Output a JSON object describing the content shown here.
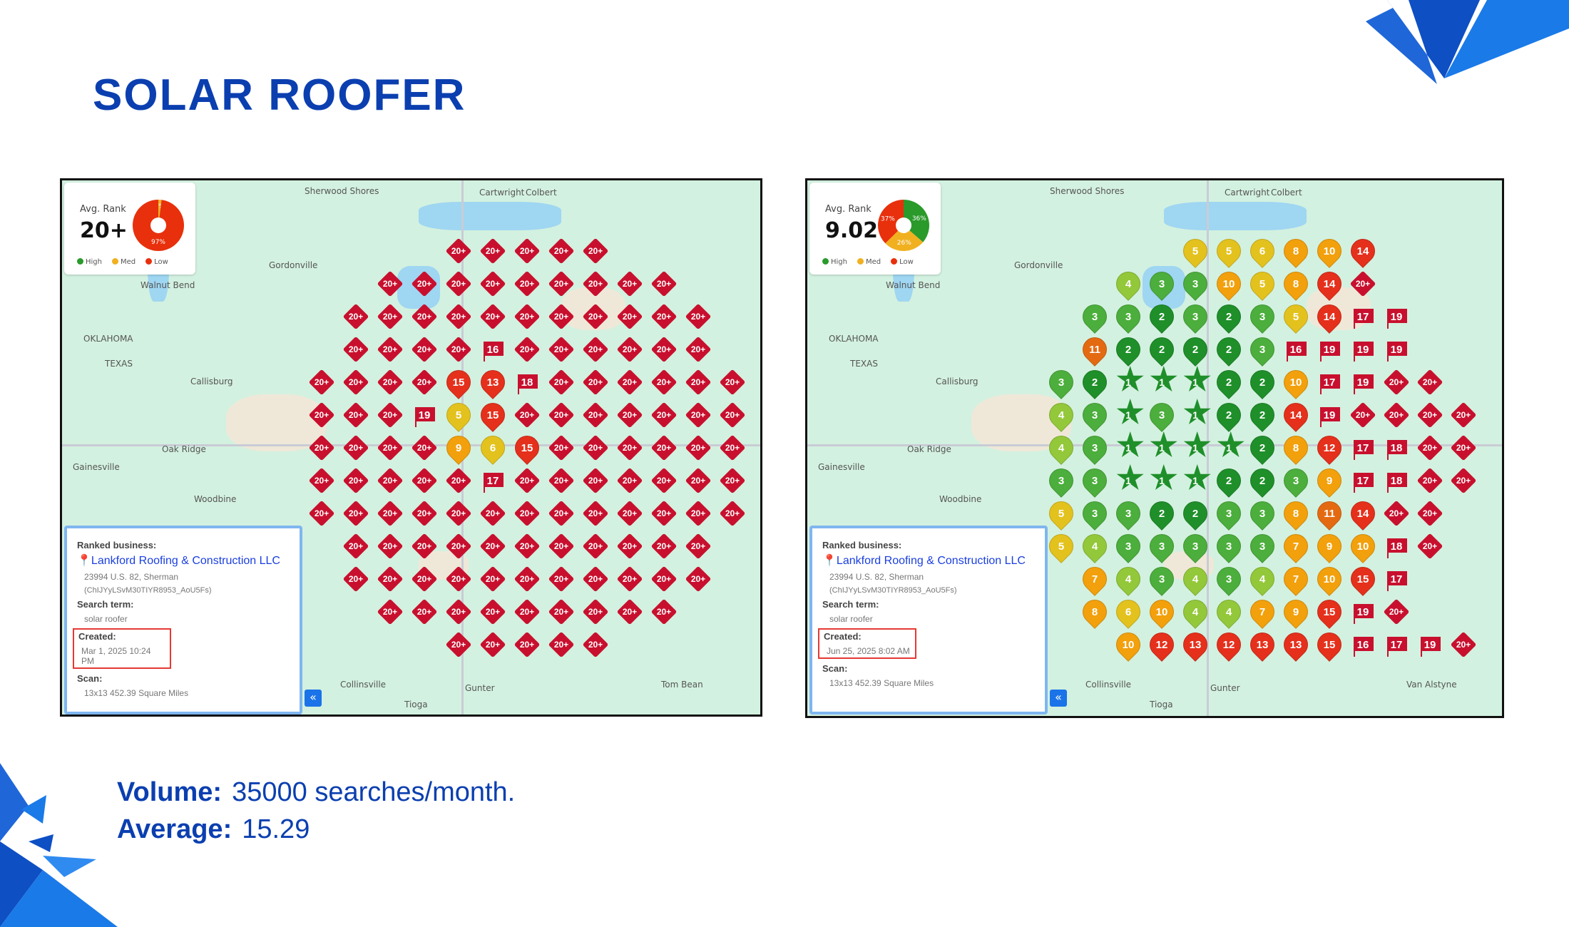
{
  "title": "SOLAR ROOFER",
  "colors": {
    "brand": "#0b3fb0",
    "high": "#2a9a2a",
    "med": "#f0b020",
    "low": "#e8300c"
  },
  "maps": [
    {
      "avg_rank_label": "Avg. Rank",
      "avg_rank": "20+",
      "pie": [
        {
          "label": "High",
          "pct": 0
        },
        {
          "label": "Med",
          "pct": 2,
          "text": "2%"
        },
        {
          "label": "Low",
          "pct": 97,
          "text": "97%"
        }
      ],
      "legend": [
        "High",
        "Med",
        "Low"
      ],
      "info": {
        "ranked_label": "Ranked business:",
        "business": "Lankford Roofing & Construction LLC",
        "address": "23994 U.S. 82, Sherman",
        "place_id": "(ChIJYyLSvM30TIYR8953_AoU5Fs)",
        "search_label": "Search term:",
        "search_term": "solar roofer",
        "created_label": "Created:",
        "created": "Mar 1, 2025 10:24 PM",
        "scan_label": "Scan:",
        "scan": "13x13 452.39 Square Miles"
      },
      "places": [
        "Sherwood Shores",
        "Cartwright",
        "Colbert",
        "Gordonville",
        "Walnut Bend",
        "OKLAHOMA",
        "TEXAS",
        "Callisburg",
        "Oak Ridge",
        "Gainesville",
        "Woodbine",
        "Collinsville",
        "Tioga",
        "Gunter",
        "Tom Bean"
      ],
      "grid": [
        [
          "",
          "",
          "",
          "",
          "20+",
          "20+",
          "20+",
          "20+",
          "20+",
          "",
          "",
          "",
          ""
        ],
        [
          "",
          "",
          "20+",
          "20+",
          "20+",
          "20+",
          "20+",
          "20+",
          "20+",
          "20+",
          "20+",
          "",
          ""
        ],
        [
          "",
          "20+",
          "20+",
          "20+",
          "20+",
          "20+",
          "20+",
          "20+",
          "20+",
          "20+",
          "20+",
          "20+",
          ""
        ],
        [
          "",
          "20+",
          "20+",
          "20+",
          "20+",
          "16",
          "20+",
          "20+",
          "20+",
          "20+",
          "20+",
          "20+",
          ""
        ],
        [
          "20+",
          "20+",
          "20+",
          "20+",
          "15",
          "13",
          "18",
          "20+",
          "20+",
          "20+",
          "20+",
          "20+",
          "20+"
        ],
        [
          "20+",
          "20+",
          "20+",
          "19",
          "5",
          "15",
          "20+",
          "20+",
          "20+",
          "20+",
          "20+",
          "20+",
          "20+"
        ],
        [
          "20+",
          "20+",
          "20+",
          "20+",
          "9",
          "6",
          "15",
          "20+",
          "20+",
          "20+",
          "20+",
          "20+",
          "20+"
        ],
        [
          "20+",
          "20+",
          "20+",
          "20+",
          "20+",
          "17",
          "20+",
          "20+",
          "20+",
          "20+",
          "20+",
          "20+",
          "20+"
        ],
        [
          "20+",
          "20+",
          "20+",
          "20+",
          "20+",
          "20+",
          "20+",
          "20+",
          "20+",
          "20+",
          "20+",
          "20+",
          "20+"
        ],
        [
          "",
          "20+",
          "20+",
          "20+",
          "20+",
          "20+",
          "20+",
          "20+",
          "20+",
          "20+",
          "20+",
          "20+",
          ""
        ],
        [
          "",
          "20+",
          "20+",
          "20+",
          "20+",
          "20+",
          "20+",
          "20+",
          "20+",
          "20+",
          "20+",
          "20+",
          ""
        ],
        [
          "",
          "",
          "20+",
          "20+",
          "20+",
          "20+",
          "20+",
          "20+",
          "20+",
          "20+",
          "20+",
          "",
          ""
        ],
        [
          "",
          "",
          "",
          "",
          "20+",
          "20+",
          "20+",
          "20+",
          "20+",
          "",
          "",
          "",
          ""
        ]
      ]
    },
    {
      "avg_rank_label": "Avg. Rank",
      "avg_rank": "9.02",
      "pie": [
        {
          "label": "High",
          "pct": 36,
          "text": "36%"
        },
        {
          "label": "Med",
          "pct": 26,
          "text": "26%"
        },
        {
          "label": "Low",
          "pct": 37,
          "text": "37%"
        }
      ],
      "legend": [
        "High",
        "Med",
        "Low"
      ],
      "info": {
        "ranked_label": "Ranked business:",
        "business": "Lankford Roofing & Construction LLC",
        "address": "23994 U.S. 82, Sherman",
        "place_id": "(ChIJYyLSvM30TIYR8953_AoU5Fs)",
        "search_label": "Search term:",
        "search_term": "solar roofer",
        "created_label": "Created:",
        "created": "Jun 25, 2025 8:02 AM",
        "scan_label": "Scan:",
        "scan": "13x13 452.39 Square Miles"
      },
      "places": [
        "Sherwood Shores",
        "Cartwright",
        "Colbert",
        "Gordonville",
        "Walnut Bend",
        "OKLAHOMA",
        "TEXAS",
        "Callisburg",
        "Oak Ridge",
        "Gainesville",
        "Woodbine",
        "Collinsville",
        "Tioga",
        "Gunter",
        "Van Alstyne"
      ],
      "grid": [
        [
          "",
          "",
          "",
          "",
          "5",
          "5",
          "6",
          "8",
          "10",
          "14",
          "",
          "",
          ""
        ],
        [
          "",
          "",
          "4",
          "3",
          "3",
          "10",
          "5",
          "8",
          "14",
          "20+",
          "",
          "",
          ""
        ],
        [
          "",
          "3",
          "3",
          "2",
          "3",
          "2",
          "3",
          "5",
          "14",
          "17",
          "19",
          "",
          ""
        ],
        [
          "",
          "11",
          "2",
          "2",
          "2",
          "2",
          "3",
          "16",
          "19",
          "19",
          "19",
          "",
          ""
        ],
        [
          "3",
          "2",
          "1",
          "1",
          "1",
          "2",
          "2",
          "10",
          "17",
          "19",
          "20+",
          "20+",
          ""
        ],
        [
          "4",
          "3",
          "1",
          "3",
          "1",
          "2",
          "2",
          "14",
          "19",
          "20+",
          "20+",
          "20+",
          "20+"
        ],
        [
          "4",
          "3",
          "1",
          "1",
          "1",
          "1",
          "2",
          "8",
          "12",
          "17",
          "18",
          "20+",
          "20+"
        ],
        [
          "3",
          "3",
          "1",
          "1",
          "1",
          "2",
          "2",
          "3",
          "9",
          "17",
          "18",
          "20+",
          "20+"
        ],
        [
          "5",
          "3",
          "3",
          "2",
          "2",
          "3",
          "3",
          "8",
          "11",
          "14",
          "20+",
          "20+",
          ""
        ],
        [
          "5",
          "4",
          "3",
          "3",
          "3",
          "3",
          "3",
          "7",
          "9",
          "10",
          "18",
          "20+",
          ""
        ],
        [
          "",
          "7",
          "4",
          "3",
          "4",
          "3",
          "4",
          "7",
          "10",
          "15",
          "17",
          "",
          ""
        ],
        [
          "",
          "8",
          "6",
          "10",
          "4",
          "4",
          "7",
          "9",
          "15",
          "19",
          "20+",
          "",
          ""
        ],
        [
          "",
          "",
          "10",
          "12",
          "13",
          "12",
          "13",
          "13",
          "15",
          "16",
          "17",
          "19",
          "20+"
        ]
      ]
    }
  ],
  "bottom": {
    "volume_label": "Volume:",
    "volume": "35000 searches/month.",
    "average_label": "Average:",
    "average": "15.29"
  }
}
